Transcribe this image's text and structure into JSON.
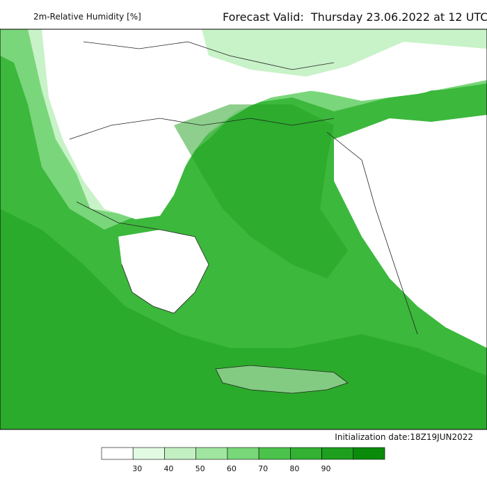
{
  "header": {
    "title": "2m-Relative Humidity [%]",
    "valid": "Forecast Valid:  Thursday 23.06.2022 at 12 UTC"
  },
  "footer": {
    "init": "Initialization date:18Z19JUN2022"
  },
  "legend": {
    "colors": [
      "#ffffff",
      "#e1fae1",
      "#c3f0c3",
      "#a0e6a0",
      "#78d778",
      "#4bc34b",
      "#32b132",
      "#1e9f1e",
      "#0a8c0a"
    ],
    "ticks": [
      30,
      40,
      50,
      60,
      70,
      80,
      90
    ]
  }
}
